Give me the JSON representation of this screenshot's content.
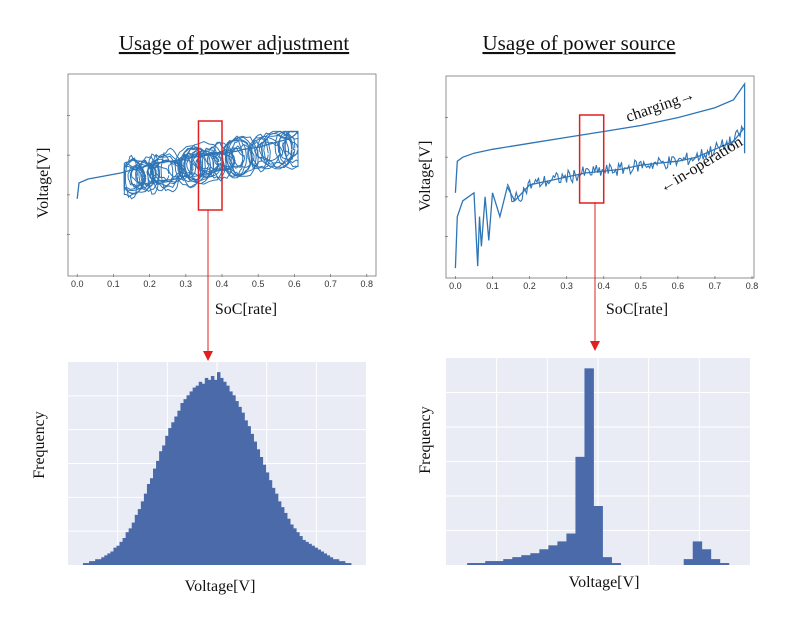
{
  "panels": {
    "left_title": "Usage of power adjustment",
    "right_title": "Usage of power source"
  },
  "chart_data": [
    {
      "type": "line",
      "title": "Usage of power adjustment",
      "xlabel": "SoC[rate]",
      "ylabel": "Voltage[V]",
      "xlim": [
        -0.02,
        0.82
      ],
      "xticks": [
        "0.0",
        "0.1",
        "0.2",
        "0.3",
        "0.4",
        "0.5",
        "0.6",
        "0.7",
        "0.8"
      ],
      "yticks_labeled": false,
      "grid": false,
      "color": "#2e75b6",
      "series": [
        {
          "x": [
            0.0,
            0.005,
            0.03,
            0.06,
            0.09,
            0.12
          ],
          "y": [
            0.38,
            0.46,
            0.48,
            0.49,
            0.5,
            0.51
          ]
        },
        {
          "x": [
            0.12,
            0.14,
            0.16,
            0.18,
            0.2,
            0.22,
            0.24,
            0.26,
            0.28,
            0.3,
            0.32,
            0.34,
            0.36,
            0.38,
            0.4,
            0.42,
            0.44,
            0.46,
            0.48,
            0.5,
            0.52,
            0.54,
            0.56,
            0.58,
            0.6,
            0.61
          ],
          "y": [
            0.51,
            0.52,
            0.53,
            0.54,
            0.55,
            0.56,
            0.565,
            0.57,
            0.575,
            0.58,
            0.59,
            0.595,
            0.6,
            0.605,
            0.61,
            0.615,
            0.62,
            0.63,
            0.635,
            0.64,
            0.65,
            0.66,
            0.67,
            0.68,
            0.7,
            0.72
          ]
        }
      ],
      "band": {
        "x_min": 0.13,
        "x_max": 0.61,
        "y_low": 0.3,
        "y_high": 0.72
      },
      "highlight": {
        "x_min": 0.335,
        "x_max": 0.4,
        "color": "#e02020"
      }
    },
    {
      "type": "line",
      "title": "Usage of power source",
      "xlabel": "SoC[rate]",
      "ylabel": "Voltage[V]",
      "xlim": [
        -0.02,
        0.8
      ],
      "xticks": [
        "0.0",
        "0.1",
        "0.2",
        "0.3",
        "0.4",
        "0.5",
        "0.6",
        "0.7",
        "0.8"
      ],
      "yticks_labeled": false,
      "grid": false,
      "color": "#2e75b6",
      "annotations": [
        "charging→",
        "←in-operation"
      ],
      "series": [
        {
          "name": "charging",
          "x": [
            0.0,
            0.005,
            0.02,
            0.05,
            0.1,
            0.2,
            0.3,
            0.4,
            0.5,
            0.6,
            0.7,
            0.75,
            0.78,
            0.78
          ],
          "y": [
            0.42,
            0.58,
            0.6,
            0.62,
            0.64,
            0.67,
            0.7,
            0.73,
            0.76,
            0.8,
            0.85,
            0.89,
            0.97,
            0.62
          ]
        },
        {
          "name": "in-operation",
          "x": [
            0.0,
            0.005,
            0.02,
            0.05,
            0.06,
            0.065,
            0.07,
            0.08,
            0.09,
            0.1,
            0.12,
            0.14,
            0.16,
            0.2,
            0.25,
            0.3,
            0.35,
            0.4,
            0.45,
            0.5,
            0.55,
            0.6,
            0.65,
            0.7,
            0.75,
            0.78
          ],
          "y": [
            0.04,
            0.3,
            0.38,
            0.42,
            0.05,
            0.3,
            0.15,
            0.4,
            0.18,
            0.42,
            0.3,
            0.45,
            0.38,
            0.46,
            0.48,
            0.5,
            0.52,
            0.53,
            0.54,
            0.56,
            0.57,
            0.58,
            0.6,
            0.64,
            0.68,
            0.75
          ]
        }
      ],
      "highlight": {
        "x_min": 0.335,
        "x_max": 0.4,
        "color": "#e02020"
      }
    },
    {
      "type": "bar",
      "title": "",
      "xlabel": "Voltage[V]",
      "ylabel": "Frequency",
      "grid": true,
      "color": "#4a6aa9",
      "background": "#e9ecf4",
      "bins": 90,
      "peak_bin": 46,
      "values": [
        0,
        0.01,
        0.01,
        0.02,
        0.02,
        0.03,
        0.03,
        0.04,
        0.05,
        0.06,
        0.07,
        0.09,
        0.1,
        0.12,
        0.14,
        0.17,
        0.19,
        0.22,
        0.26,
        0.29,
        0.33,
        0.37,
        0.42,
        0.45,
        0.5,
        0.54,
        0.59,
        0.62,
        0.67,
        0.71,
        0.74,
        0.77,
        0.8,
        0.84,
        0.86,
        0.88,
        0.9,
        0.92,
        0.93,
        0.95,
        0.94,
        0.97,
        0.96,
        0.98,
        0.96,
        1.0,
        0.97,
        0.95,
        0.93,
        0.9,
        0.88,
        0.85,
        0.82,
        0.79,
        0.75,
        0.72,
        0.68,
        0.64,
        0.6,
        0.56,
        0.52,
        0.48,
        0.44,
        0.4,
        0.37,
        0.33,
        0.3,
        0.27,
        0.24,
        0.21,
        0.19,
        0.17,
        0.15,
        0.13,
        0.12,
        0.11,
        0.1,
        0.09,
        0.08,
        0.07,
        0.06,
        0.05,
        0.04,
        0.03,
        0.03,
        0.02,
        0.02,
        0.01,
        0.01,
        0.0
      ]
    },
    {
      "type": "bar",
      "title": "",
      "xlabel": "Voltage[V]",
      "ylabel": "Frequency",
      "grid": true,
      "color": "#4a6aa9",
      "background": "#e9ecf4",
      "bins": 31,
      "values": [
        0,
        0.01,
        0.01,
        0.02,
        0.02,
        0.03,
        0.04,
        0.05,
        0.06,
        0.08,
        0.1,
        0.12,
        0.16,
        0.55,
        1.0,
        0.3,
        0.04,
        0.01,
        0.0,
        0.0,
        0.0,
        0.0,
        0.0,
        0.0,
        0.0,
        0.03,
        0.12,
        0.08,
        0.03,
        0.01,
        0.0
      ]
    }
  ]
}
